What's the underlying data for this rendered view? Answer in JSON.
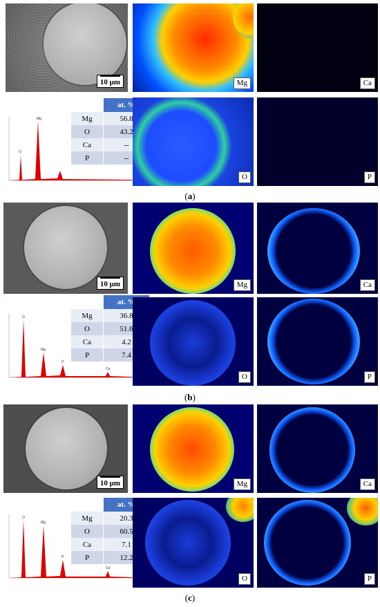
{
  "scale_bar_label": "10 μm",
  "table_header": "at. %",
  "panels": [
    {
      "caption": "(a)",
      "caption_letter": "a",
      "map_labels": {
        "Mg": "Mg",
        "Ca": "Ca",
        "O": "O",
        "P": "P"
      },
      "composition": [
        {
          "element": "Mg",
          "value": "56.8"
        },
        {
          "element": "O",
          "value": "43.2"
        },
        {
          "element": "Ca",
          "value": "--"
        },
        {
          "element": "P",
          "value": "--"
        }
      ],
      "spectrum_peaks": [
        "O",
        "Mg"
      ]
    },
    {
      "caption": "(b)",
      "caption_letter": "b",
      "map_labels": {
        "Mg": "Mg",
        "Ca": "Ca",
        "O": "O",
        "P": "P"
      },
      "composition": [
        {
          "element": "Mg",
          "value": "36.8"
        },
        {
          "element": "O",
          "value": "51.6"
        },
        {
          "element": "Ca",
          "value": "4.2"
        },
        {
          "element": "P",
          "value": "7.4"
        }
      ],
      "spectrum_peaks": [
        "O",
        "Mg",
        "P",
        "Ca"
      ]
    },
    {
      "caption": "(c)",
      "caption_letter": "c",
      "map_labels": {
        "Mg": "Mg",
        "Ca": "Ca",
        "O": "O",
        "P": "P"
      },
      "composition": [
        {
          "element": "Mg",
          "value": "20.3"
        },
        {
          "element": "O",
          "value": "60.5"
        },
        {
          "element": "Ca",
          "value": "7.1"
        },
        {
          "element": "P",
          "value": "12.2"
        }
      ],
      "spectrum_peaks": [
        "O",
        "Mg",
        "P",
        "Ca"
      ]
    }
  ],
  "colors": {
    "map_background": "#00007a",
    "table_header": "#4472c4",
    "table_row_dark": "#cfd6e8",
    "table_row_light": "#e9edf6",
    "spectrum_peak": "#e00000"
  }
}
